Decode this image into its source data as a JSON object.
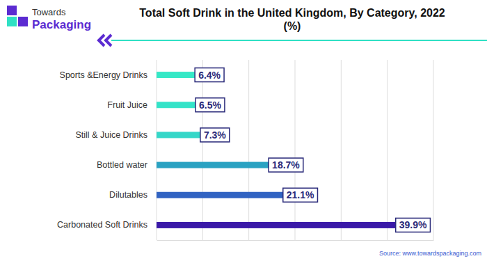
{
  "chart_data": {
    "type": "bar",
    "orientation": "horizontal",
    "title": "Total Soft Drink in the United Kingdom, By Category, 2022 (%)",
    "brand": [
      "Towards",
      "Packaging"
    ],
    "source": "Source: www.towardspackaging.com",
    "categories": [
      "Sports &Energy Drinks",
      "Fruit Juice",
      "Still & Juice Drinks",
      "Bottled water",
      "Dilutables",
      "Carbonated Soft Drinks"
    ],
    "values": [
      6.4,
      6.5,
      7.3,
      18.7,
      21.1,
      39.9
    ],
    "value_labels": [
      "6.4%",
      "6.5%",
      "7.3%",
      "18.7%",
      "21.1%",
      "39.9%"
    ],
    "colors": [
      "#35e8c6",
      "#33e3c8",
      "#35d7c8",
      "#2aa2c2",
      "#3163c2",
      "#3a19a8"
    ],
    "xlim": [
      0,
      46.2
    ],
    "xticks": [
      0,
      7.7,
      15.4,
      23.1,
      30.8,
      38.5,
      46.2
    ],
    "grid": true,
    "data_labels": true,
    "tick_labels": false
  }
}
